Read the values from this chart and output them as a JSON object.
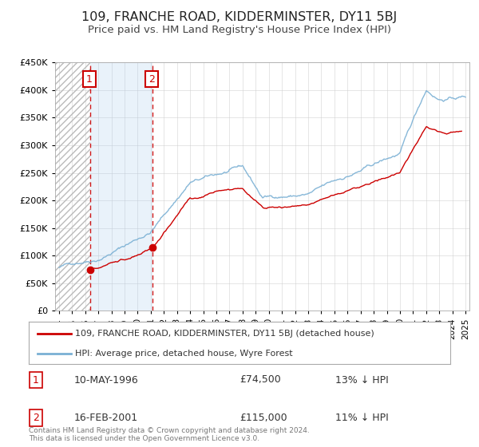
{
  "title": "109, FRANCHE ROAD, KIDDERMINSTER, DY11 5BJ",
  "subtitle": "Price paid vs. HM Land Registry's House Price Index (HPI)",
  "title_fontsize": 11.5,
  "subtitle_fontsize": 9.5,
  "xlim": [
    1993.7,
    2025.3
  ],
  "ylim": [
    0,
    450000
  ],
  "yticks": [
    0,
    50000,
    100000,
    150000,
    200000,
    250000,
    300000,
    350000,
    400000,
    450000
  ],
  "xticks": [
    1994,
    1995,
    1996,
    1997,
    1998,
    1999,
    2000,
    2001,
    2002,
    2003,
    2004,
    2005,
    2006,
    2007,
    2008,
    2009,
    2010,
    2011,
    2012,
    2013,
    2014,
    2015,
    2016,
    2017,
    2018,
    2019,
    2020,
    2021,
    2022,
    2023,
    2024,
    2025
  ],
  "property_color": "#cc0000",
  "hpi_color": "#7ab0d4",
  "shading_color": "#ddeeff",
  "point1_date": 1996.36,
  "point1_value": 74500,
  "point2_date": 2001.12,
  "point2_value": 115000,
  "vline1_x": 1996.36,
  "vline2_x": 2001.12,
  "legend_label1": "109, FRANCHE ROAD, KIDDERMINSTER, DY11 5BJ (detached house)",
  "legend_label2": "HPI: Average price, detached house, Wyre Forest",
  "table_row1": [
    "1",
    "10-MAY-1996",
    "£74,500",
    "13% ↓ HPI"
  ],
  "table_row2": [
    "2",
    "16-FEB-2001",
    "£115,000",
    "11% ↓ HPI"
  ],
  "footer1": "Contains HM Land Registry data © Crown copyright and database right 2024.",
  "footer2": "This data is licensed under the Open Government Licence v3.0.",
  "background_color": "#ffffff",
  "grid_color": "#cccccc"
}
